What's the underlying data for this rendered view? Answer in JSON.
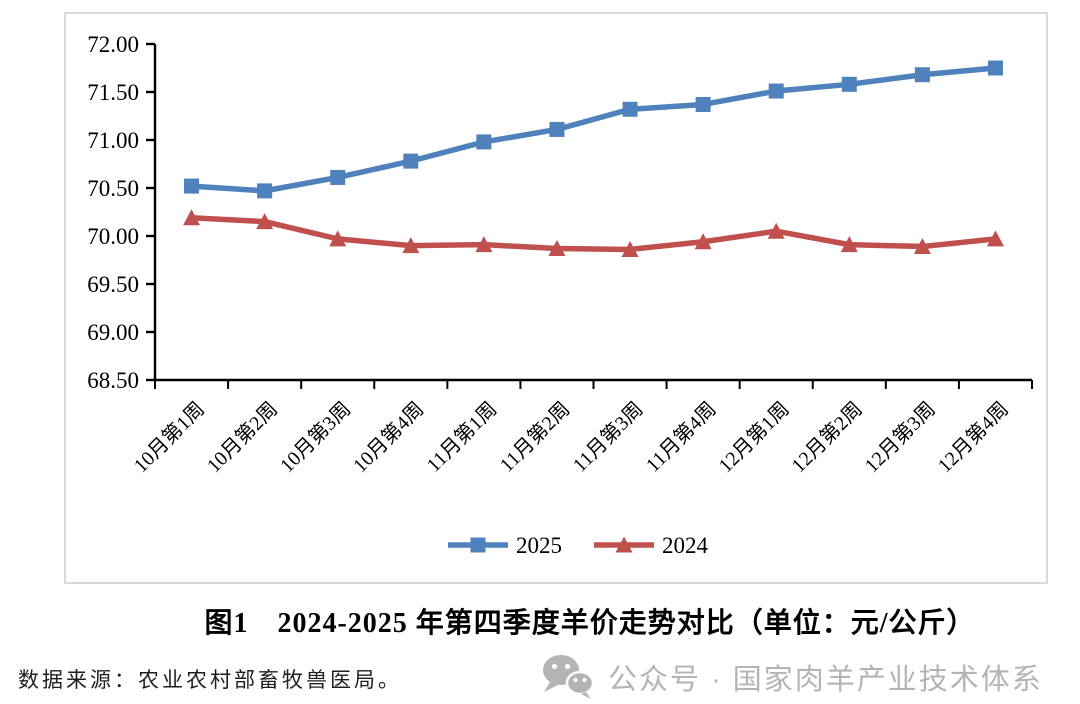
{
  "chart_data": {
    "type": "line",
    "title": "2024-2025年第四季度羊价走势对比",
    "unit": "元/公斤",
    "categories": [
      "10月第1周",
      "10月第2周",
      "10月第3周",
      "10月第4周",
      "11月第1周",
      "11月第2周",
      "11月第3周",
      "11月第4周",
      "12月第1周",
      "12月第2周",
      "12月第3周",
      "12月第4周"
    ],
    "series": [
      {
        "name": "2025",
        "marker": "square",
        "color": "#4F81BD",
        "values": [
          70.52,
          70.47,
          70.61,
          70.78,
          70.98,
          71.11,
          71.32,
          71.37,
          71.51,
          71.58,
          71.68,
          71.75
        ]
      },
      {
        "name": "2024",
        "marker": "triangle",
        "color": "#C0504D",
        "values": [
          70.19,
          70.15,
          69.97,
          69.9,
          69.91,
          69.87,
          69.86,
          69.94,
          70.05,
          69.91,
          69.89,
          69.97
        ]
      }
    ],
    "ylim": [
      68.5,
      72.0
    ],
    "ytick_step": 0.5,
    "ytick_labels": [
      "68.50",
      "69.00",
      "69.50",
      "70.00",
      "70.50",
      "71.00",
      "71.50",
      "72.00"
    ],
    "grid": false,
    "legend_position": "bottom",
    "xlabel": "",
    "ylabel": ""
  },
  "figure": {
    "caption": "图1　2024-2025 年第四季度羊价走势对比（单位：元/公斤）"
  },
  "footer": {
    "source": "数据来源：农业农村部畜牧兽医局。"
  },
  "watermark": {
    "icon": "wechat-icon",
    "text": "公众号 · 国家肉羊产业技术体系",
    "color": "#b4b4b4"
  }
}
